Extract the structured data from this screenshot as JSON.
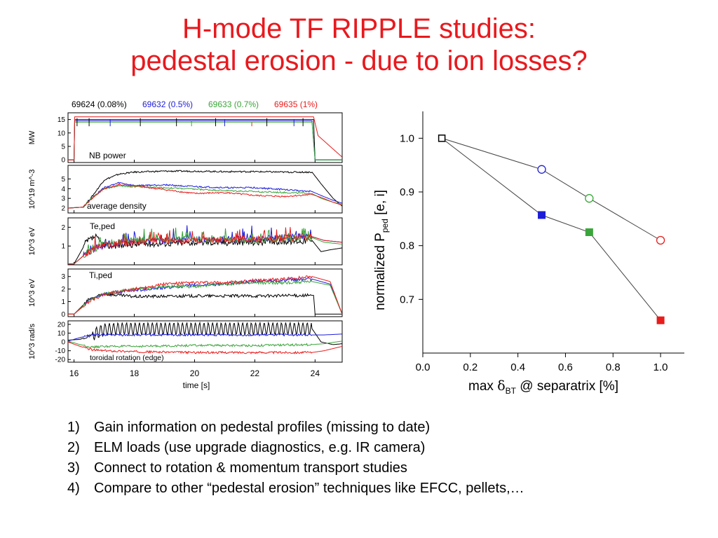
{
  "title": {
    "line1": "H-mode TF RIPPLE studies:",
    "line2": "pedestal erosion - due to ion losses?"
  },
  "colors": {
    "title": "#e8191e",
    "black": "#000000",
    "blue": "#1d1dd9",
    "green": "#3aa53a",
    "red": "#e81c1c"
  },
  "chart_data": [
    {
      "type": "line",
      "legend": [
        {
          "label": "69624 (0.08%)",
          "color": "#000000"
        },
        {
          "label": "69632 (0.5%)",
          "color": "#1d1dd9"
        },
        {
          "label": "69633 (0.7%)",
          "color": "#3aa53a"
        },
        {
          "label": "69635 (1%)",
          "color": "#e81c1c"
        }
      ],
      "xlabel": "time [s]",
      "xlim": [
        15.8,
        24.9
      ],
      "xticks": [
        "16",
        "18",
        "20",
        "22",
        "24"
      ],
      "panels": [
        {
          "key": "nb",
          "label": "NB power",
          "ylabel": "MW",
          "ylim": [
            -1,
            17.5
          ],
          "yticks": [
            "0",
            "5",
            "10",
            "15"
          ],
          "series": [
            {
              "name": "69624 (0.08%)",
              "x": [
                15.8,
                16.0,
                16.02,
                23.95,
                24.0,
                24.9
              ],
              "y": [
                0,
                0,
                15,
                15,
                0,
                0
              ]
            },
            {
              "name": "69632 (0.5%)",
              "x": [
                15.8,
                16.0,
                16.02,
                23.9,
                24.0,
                24.9
              ],
              "y": [
                0,
                0,
                14.5,
                14.5,
                0,
                0
              ]
            },
            {
              "name": "69633 (0.7%)",
              "x": [
                15.8,
                16.0,
                16.02,
                23.9,
                24.0,
                24.9
              ],
              "y": [
                0,
                0,
                14,
                14,
                0,
                0
              ]
            },
            {
              "name": "69635 (1%)",
              "x": [
                15.8,
                16.0,
                16.02,
                23.95,
                24.1,
                24.3,
                24.5,
                24.7,
                24.9
              ],
              "y": [
                0,
                0,
                16,
                16,
                9,
                7,
                5,
                3,
                1
              ]
            }
          ]
        },
        {
          "key": "dens",
          "label": "average density",
          "ylabel": "10^19 m^-3",
          "ylim": [
            1.5,
            6.4
          ],
          "yticks": [
            "2",
            "3",
            "4",
            "5"
          ],
          "series": [
            {
              "name": "69624 (0.08%)",
              "x": [
                15.8,
                16.3,
                16.6,
                17.0,
                17.5,
                18.0,
                19.0,
                20.0,
                21.0,
                22.0,
                23.0,
                23.9,
                24.2,
                24.6,
                24.9
              ],
              "y": [
                2.0,
                2.1,
                3.2,
                4.9,
                5.5,
                5.7,
                5.8,
                5.8,
                5.75,
                5.75,
                5.7,
                5.7,
                4.5,
                3.0,
                2.2
              ]
            },
            {
              "name": "69632 (0.5%)",
              "x": [
                15.8,
                16.3,
                16.6,
                17.0,
                17.5,
                18.0,
                19.0,
                20.0,
                21.0,
                22.0,
                23.0,
                23.9,
                24.2,
                24.6,
                24.9
              ],
              "y": [
                2.0,
                2.1,
                3.1,
                4.1,
                4.6,
                4.3,
                4.4,
                4.2,
                4.1,
                4.1,
                3.9,
                3.7,
                3.3,
                2.8,
                2.5
              ]
            },
            {
              "name": "69633 (0.7%)",
              "x": [
                15.8,
                16.3,
                16.6,
                17.0,
                17.5,
                18.0,
                19.0,
                20.0,
                21.0,
                22.0,
                23.0,
                23.9,
                24.2,
                24.6,
                24.9
              ],
              "y": [
                2.0,
                2.1,
                3.1,
                4.0,
                4.3,
                4.2,
                4.1,
                3.95,
                3.8,
                3.7,
                3.6,
                3.5,
                3.0,
                2.6,
                2.4
              ]
            },
            {
              "name": "69635 (1%)",
              "x": [
                15.8,
                16.3,
                16.6,
                17.0,
                17.5,
                18.0,
                19.0,
                20.0,
                21.0,
                22.0,
                23.0,
                23.9,
                24.2,
                24.6,
                24.9
              ],
              "y": [
                2.0,
                2.1,
                3.0,
                4.0,
                4.4,
                4.3,
                3.9,
                3.5,
                3.6,
                3.3,
                3.2,
                3.4,
                3.1,
                2.6,
                2.3
              ]
            }
          ]
        },
        {
          "key": "te",
          "label": "Te,ped",
          "ylabel": "10^3 eV",
          "ylim": [
            0,
            2.5
          ],
          "yticks": [
            "1",
            "2"
          ],
          "series": [
            {
              "name": "69624 (0.08%)",
              "x": [
                15.8,
                16.0,
                16.4,
                16.7,
                17.0,
                18.0,
                20.0,
                22.0,
                23.9,
                24.2,
                24.5,
                24.9
              ],
              "y": [
                0.05,
                0.05,
                1.2,
                1.5,
                1.0,
                1.1,
                1.2,
                1.2,
                1.3,
                0.7,
                0.8,
                0.9
              ]
            },
            {
              "name": "69632 (0.5%)",
              "x": [
                15.8,
                16.0,
                16.4,
                17.0,
                18.0,
                20.0,
                22.0,
                23.9,
                24.3,
                24.9
              ],
              "y": [
                0.05,
                0.05,
                0.6,
                1.1,
                1.25,
                1.35,
                1.4,
                1.5,
                1.3,
                1.2
              ]
            },
            {
              "name": "69633 (0.7%)",
              "x": [
                15.8,
                16.0,
                16.4,
                17.0,
                18.0,
                20.0,
                22.0,
                23.9,
                24.3,
                24.9
              ],
              "y": [
                0.05,
                0.05,
                0.6,
                1.1,
                1.3,
                1.35,
                1.35,
                1.45,
                1.2,
                1.1
              ]
            },
            {
              "name": "69635 (1%)",
              "x": [
                15.8,
                16.0,
                16.4,
                17.0,
                18.0,
                20.0,
                22.0,
                23.9,
                24.3,
                24.9
              ],
              "y": [
                0.05,
                0.05,
                0.6,
                1.05,
                1.2,
                1.3,
                1.35,
                1.5,
                1.3,
                1.2
              ]
            }
          ]
        },
        {
          "key": "ti",
          "label": "Ti,ped",
          "ylabel": "10^3 eV",
          "ylim": [
            -0.2,
            3.6
          ],
          "yticks": [
            "0",
            "1",
            "2",
            "3"
          ],
          "series": [
            {
              "name": "69624 (0.08%)",
              "x": [
                15.8,
                16.0,
                16.5,
                17.0,
                17.5,
                18.0,
                20.0,
                22.0,
                23.95,
                24.0,
                24.9
              ],
              "y": [
                0.0,
                0.0,
                1.2,
                1.6,
                1.5,
                1.4,
                1.45,
                1.45,
                1.5,
                0.0,
                0.0
              ]
            },
            {
              "name": "69632 (0.5%)",
              "x": [
                15.8,
                16.0,
                16.5,
                17.0,
                18.0,
                19.0,
                20.0,
                21.0,
                22.0,
                23.0,
                23.9,
                24.5,
                24.9
              ],
              "y": [
                0.0,
                0.0,
                1.1,
                1.6,
                1.9,
                2.1,
                2.3,
                2.4,
                2.6,
                2.7,
                2.8,
                2.4,
                0.0
              ]
            },
            {
              "name": "69633 (0.7%)",
              "x": [
                15.8,
                16.0,
                16.5,
                17.0,
                18.0,
                19.0,
                20.0,
                21.0,
                22.0,
                23.0,
                23.9,
                24.5,
                24.9
              ],
              "y": [
                0.0,
                0.0,
                1.1,
                1.6,
                2.0,
                2.2,
                2.2,
                2.4,
                2.5,
                2.5,
                2.6,
                2.3,
                0.0
              ]
            },
            {
              "name": "69635 (1%)",
              "x": [
                15.8,
                16.0,
                16.5,
                17.0,
                18.0,
                19.0,
                20.0,
                21.0,
                22.0,
                23.0,
                23.9,
                24.5,
                24.9
              ],
              "y": [
                0.0,
                0.0,
                1.0,
                1.6,
                2.0,
                2.4,
                2.5,
                2.5,
                2.7,
                2.8,
                3.0,
                2.6,
                0.0
              ]
            }
          ]
        },
        {
          "key": "rot",
          "label": "toroidal rotation (edge)",
          "ylabel": "10^3 rad/s",
          "ylim": [
            -23,
            24
          ],
          "yticks": [
            "20",
            "10",
            "0",
            "-10",
            "-20"
          ],
          "series": [
            {
              "name": "69624 (0.08%)",
              "x": [
                15.8,
                16.2,
                16.6,
                17.0,
                17.5,
                18.0,
                20.0,
                22.0,
                23.9,
                24.2,
                24.6,
                24.9
              ],
              "y": [
                2,
                3,
                8,
                14,
                15,
                15,
                15,
                15,
                15,
                0,
                -3,
                -2
              ]
            },
            {
              "name": "69632 (0.5%)",
              "x": [
                15.8,
                16.2,
                16.6,
                17.0,
                18.0,
                20.0,
                22.0,
                23.9,
                24.3,
                24.9
              ],
              "y": [
                1,
                5,
                8,
                8,
                8,
                8,
                8,
                8,
                8,
                9
              ]
            },
            {
              "name": "69633 (0.7%)",
              "x": [
                15.8,
                16.2,
                16.6,
                17.0,
                18.0,
                20.0,
                22.0,
                23.9,
                24.3,
                24.9
              ],
              "y": [
                1,
                -3,
                -6,
                -5,
                -5,
                -4,
                -4,
                -3,
                -2,
                1
              ]
            },
            {
              "name": "69635 (1%)",
              "x": [
                15.8,
                16.2,
                16.6,
                17.0,
                18.0,
                20.0,
                22.0,
                23.9,
                24.3,
                24.9
              ],
              "y": [
                0,
                -5,
                -9,
                -10,
                -11,
                -12,
                -12,
                -12,
                -10,
                -5
              ]
            }
          ]
        }
      ]
    },
    {
      "type": "scatter",
      "xlabel": "max δBT @ separatrix [%]",
      "ylabel": "normalized Pped [e, i]",
      "xlim": [
        0.0,
        1.1
      ],
      "ylim": [
        0.6,
        1.05
      ],
      "xticks": [
        "0.0",
        "0.2",
        "0.4",
        "0.6",
        "0.8",
        "1.0"
      ],
      "yticks": [
        "0.7",
        "0.8",
        "0.9",
        "1.0"
      ],
      "series": [
        {
          "name": "",
          "x": [
            0.08,
            0.5,
            0.7,
            1.0
          ],
          "y": [
            1.0,
            0.942,
            0.888,
            0.81
          ],
          "marker": "open-circle",
          "colors": [
            "#000000",
            "#1d1dd9",
            "#3aa53a",
            "#e81c1c"
          ]
        },
        {
          "name": "",
          "x": [
            0.08,
            0.5,
            0.7,
            1.0
          ],
          "y": [
            1.0,
            0.857,
            0.825,
            0.661
          ],
          "marker": "filled-square",
          "colors": [
            "#000000",
            "#1d1dd9",
            "#3aa53a",
            "#e81c1c"
          ]
        }
      ]
    }
  ],
  "bullets": [
    {
      "num": "1)",
      "text": "Gain information on pedestal profiles (missing to date)"
    },
    {
      "num": "2)",
      "text": "ELM loads (use upgrade diagnostics, e.g. IR camera)"
    },
    {
      "num": "3)",
      "text": "Connect to rotation & momentum transport studies"
    },
    {
      "num": "4)",
      "text": "Compare to other “pedestal erosion” techniques like EFCC, pellets,…"
    }
  ]
}
